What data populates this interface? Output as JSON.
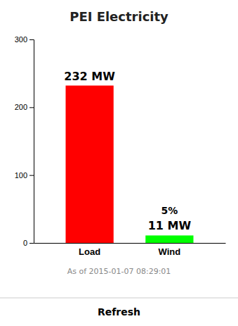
{
  "chart_data": {
    "type": "bar",
    "title": "PEI Electricity",
    "subtitle": "As of 2015-01-07 08:29:01",
    "categories": [
      "Load",
      "Wind"
    ],
    "values": [
      232,
      11
    ],
    "colors": [
      "#ff0000",
      "#00ff00"
    ],
    "ylim": [
      0,
      300
    ],
    "yticks": [
      0,
      100,
      200,
      300
    ],
    "grid": false,
    "data_labels": true,
    "value_labels": [
      "232 MW",
      "11 MW"
    ],
    "annotations": [
      {
        "text": "5%",
        "category": "Wind"
      },
      {
        "text": "Refresh"
      }
    ]
  }
}
